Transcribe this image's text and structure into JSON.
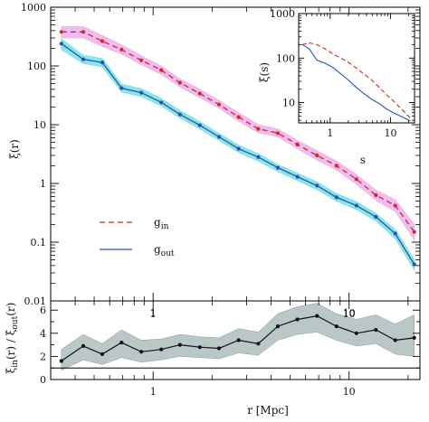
{
  "chart_data": [
    {
      "id": "main",
      "type": "line",
      "xlabel": "r [Mpc]",
      "ylabel": "ξ(r)",
      "xscale": "log",
      "yscale": "log",
      "xlim": [
        0.3,
        23
      ],
      "ylim": [
        0.01,
        1000
      ],
      "x_ticks": [
        "1",
        "10"
      ],
      "y_ticks": [
        "0.01",
        "0.1",
        "1",
        "10",
        "100",
        "1000"
      ],
      "legend_placement": "lower-left",
      "series": [
        {
          "name_main": "g",
          "name_sub": "in",
          "color": "#dd2222",
          "band_color": "#e9a7ee",
          "style": "dashed",
          "x": [
            0.34,
            0.44,
            0.55,
            0.69,
            0.87,
            1.1,
            1.37,
            1.73,
            2.17,
            2.73,
            3.44,
            4.33,
            5.45,
            6.86,
            8.63,
            10.9,
            13.7,
            17.2,
            21.5
          ],
          "y": [
            380,
            380,
            265,
            190,
            125,
            85,
            52,
            34,
            22,
            13.5,
            8.5,
            7.2,
            4.6,
            3.0,
            2.0,
            1.18,
            0.63,
            0.42,
            0.15
          ],
          "band_low": [
            300,
            300,
            215,
            160,
            105,
            72,
            44,
            29,
            19,
            11.5,
            7.3,
            6.2,
            3.9,
            2.5,
            1.7,
            0.97,
            0.52,
            0.33,
            0.11
          ],
          "band_high": [
            470,
            470,
            330,
            230,
            150,
            100,
            61,
            40,
            26,
            16,
            10,
            8.5,
            5.4,
            3.6,
            2.4,
            1.42,
            0.77,
            0.53,
            0.2
          ]
        },
        {
          "name_main": "g",
          "name_sub": "out",
          "color": "#2255bb",
          "band_color": "#66dddd",
          "style": "solid",
          "x": [
            0.34,
            0.44,
            0.55,
            0.69,
            0.87,
            1.1,
            1.37,
            1.73,
            2.17,
            2.73,
            3.44,
            4.33,
            5.45,
            6.86,
            8.63,
            10.9,
            13.7,
            17.2,
            21.5
          ],
          "y": [
            240,
            130,
            115,
            42,
            35,
            24,
            15,
            9.8,
            6.2,
            3.9,
            2.8,
            1.85,
            1.3,
            0.92,
            0.58,
            0.42,
            0.27,
            0.14,
            0.042
          ],
          "band_low": [
            190,
            110,
            97,
            36,
            30,
            21,
            13,
            8.5,
            5.4,
            3.4,
            2.4,
            1.6,
            1.12,
            0.79,
            0.5,
            0.36,
            0.23,
            0.115,
            0.034
          ],
          "band_high": [
            290,
            152,
            134,
            49,
            41,
            28,
            17.5,
            11.3,
            7.1,
            4.5,
            3.2,
            2.1,
            1.5,
            1.06,
            0.67,
            0.49,
            0.31,
            0.165,
            0.05
          ]
        }
      ]
    },
    {
      "id": "inset",
      "type": "line",
      "xlabel": "s",
      "ylabel": "ξ(s)",
      "xscale": "log",
      "yscale": "log",
      "xlim": [
        0.3,
        25
      ],
      "ylim": [
        3.5,
        1000
      ],
      "x_ticks": [
        "1",
        "10"
      ],
      "y_ticks": [
        "10",
        "100",
        "1000"
      ],
      "series": [
        {
          "color": "#dd2222",
          "style": "dashed",
          "x": [
            0.34,
            0.45,
            0.6,
            0.8,
            1.1,
            1.5,
            2.0,
            2.7,
            3.6,
            4.8,
            6.5,
            8.6,
            11.5,
            15.5,
            21
          ],
          "y": [
            200,
            220,
            200,
            165,
            125,
            100,
            80,
            60,
            44,
            33,
            22,
            15,
            10.5,
            7.0,
            4.6
          ]
        },
        {
          "color": "#2255bb",
          "style": "solid",
          "x": [
            0.34,
            0.45,
            0.6,
            0.8,
            1.1,
            1.5,
            2.0,
            2.7,
            3.6,
            4.8,
            6.5,
            8.6,
            11.5,
            15.5,
            21
          ],
          "y": [
            205,
            160,
            90,
            78,
            62,
            44,
            32,
            22,
            16,
            12,
            9.5,
            7.2,
            5.8,
            4.8,
            3.9
          ]
        }
      ]
    },
    {
      "id": "ratio",
      "type": "line",
      "xlabel": "r [Mpc]",
      "ylabel": "ξ_in(r) / ξ_out(r)",
      "ylabel_parts": [
        "ξ",
        "in",
        "(r) / ξ",
        "out",
        "(r)"
      ],
      "xscale": "log",
      "yscale": "linear",
      "xlim": [
        0.3,
        23
      ],
      "ylim": [
        0,
        6.8
      ],
      "x_ticks": [
        "1",
        "10"
      ],
      "y_ticks": [
        "0",
        "2",
        "4",
        "6"
      ],
      "reference_line": 1,
      "series": [
        {
          "color": "#111111",
          "band_color": "#b9c7c7",
          "x": [
            0.34,
            0.44,
            0.55,
            0.69,
            0.87,
            1.1,
            1.37,
            1.73,
            2.17,
            2.73,
            3.44,
            4.33,
            5.45,
            6.86,
            8.63,
            10.9,
            13.7,
            17.2,
            21.5
          ],
          "y": [
            1.6,
            2.9,
            2.2,
            3.2,
            2.4,
            2.6,
            3.0,
            2.8,
            2.7,
            3.4,
            3.1,
            4.6,
            5.2,
            5.5,
            4.6,
            4.0,
            4.3,
            3.4,
            3.6
          ],
          "band_low": [
            0.8,
            1.7,
            1.3,
            1.9,
            1.5,
            1.7,
            2.0,
            1.9,
            1.8,
            2.3,
            2.1,
            3.4,
            3.9,
            4.1,
            3.4,
            2.9,
            3.1,
            2.2,
            2.0
          ],
          "band_high": [
            2.6,
            3.9,
            3.1,
            4.3,
            3.4,
            3.5,
            3.9,
            3.7,
            3.6,
            4.4,
            4.1,
            5.7,
            6.3,
            6.6,
            5.7,
            5.2,
            5.6,
            4.8,
            5.6
          ]
        }
      ]
    }
  ]
}
